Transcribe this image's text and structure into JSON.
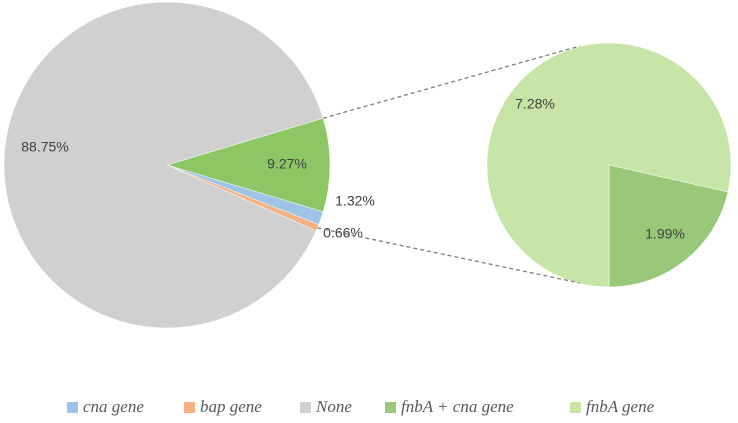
{
  "chart_data": {
    "type": "pie-of-pie",
    "main": {
      "categories": [
        "cna gene",
        "bap gene",
        "None",
        null
      ],
      "values": [
        1.32,
        0.66,
        88.75,
        9.27
      ],
      "value_labels": [
        "1.32%",
        "0.66%",
        "88.75%",
        "9.27%"
      ],
      "colors": [
        "#9dc3e6",
        "#f4b183",
        "#d0d0d0",
        "#8cc665"
      ]
    },
    "secondary": {
      "categories": [
        "fnbA + cna gene",
        "fnbA gene"
      ],
      "values": [
        1.99,
        7.28
      ],
      "value_labels": [
        "1.99%",
        "7.28%"
      ],
      "colors": [
        "#98c878",
        "#c8e5a8"
      ]
    }
  }
}
